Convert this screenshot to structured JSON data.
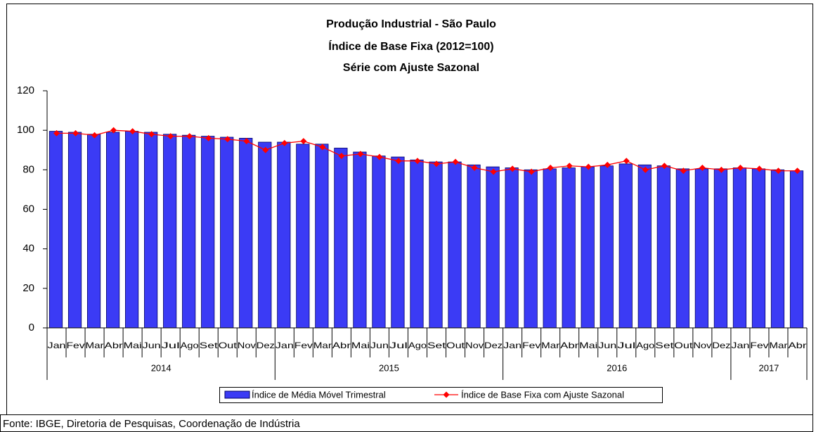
{
  "chart_data": {
    "type": "bar_line",
    "title": [
      "Produção Industrial - São Paulo",
      "Índice de Base Fixa (2012=100)",
      "Série com Ajuste Sazonal"
    ],
    "categories": [
      "Jan",
      "Fev",
      "Mar",
      "Abr",
      "Mai",
      "Jun",
      "Jul",
      "Ago",
      "Set",
      "Out",
      "Nov",
      "Dez",
      "Jan",
      "Fev",
      "Mar",
      "Abr",
      "Mai",
      "Jun",
      "Jul",
      "Ago",
      "Set",
      "Out",
      "Nov",
      "Dez",
      "Jan",
      "Fev",
      "Mar",
      "Abr",
      "Mai",
      "Jun",
      "Jul",
      "Ago",
      "Set",
      "Out",
      "Nov",
      "Dez",
      "Jan",
      "Fev",
      "Mar",
      "Abr"
    ],
    "year_labels": [
      "2014",
      "2015",
      "2016",
      "2017"
    ],
    "series": [
      {
        "name": "Índice de Média Móvel Trimestral",
        "kind": "bar",
        "color": "#3b3bf5",
        "values": [
          99.5,
          99,
          98,
          99,
          99.5,
          99,
          98,
          97.5,
          97,
          96.5,
          96,
          94,
          94,
          93,
          93,
          91,
          89,
          87,
          86.5,
          85,
          84,
          84,
          82.5,
          81.5,
          81,
          80,
          80.5,
          81,
          81.5,
          82,
          83,
          82.5,
          82,
          80.5,
          80.5,
          80.5,
          81,
          80.5,
          80,
          79.5
        ]
      },
      {
        "name": "Índice de Base Fixa com Ajuste Sazonal",
        "kind": "line",
        "color": "#ff0000",
        "values": [
          98.5,
          98.5,
          97.5,
          100,
          99.5,
          98,
          97,
          97,
          96,
          95.5,
          94.5,
          90,
          93.5,
          94.5,
          91.5,
          87,
          88,
          86.5,
          84.5,
          84.5,
          83,
          84,
          81,
          79,
          80.5,
          79,
          81,
          82,
          81.5,
          82.5,
          84.5,
          80,
          82,
          79.5,
          81,
          80,
          81,
          80.5,
          79.5,
          79.5
        ]
      }
    ],
    "ylim": [
      0,
      120
    ],
    "yticks": [
      0,
      20,
      40,
      60,
      80,
      100,
      120
    ],
    "grid": false,
    "source": "Fonte: IBGE, Diretoria de Pesquisas, Coordenação de Indústria"
  }
}
